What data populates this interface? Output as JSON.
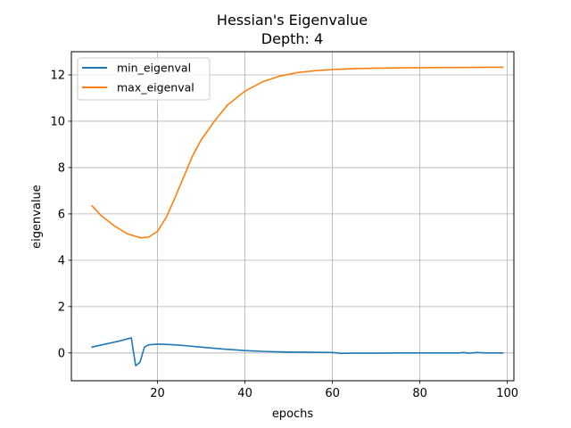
{
  "chart_data": {
    "type": "line",
    "title": "Hessian's Eigenvalue",
    "subtitle": "Depth: 4",
    "xlabel": "epochs",
    "ylabel": "eigenvalue",
    "xlim": [
      0.3,
      101.5
    ],
    "ylim": [
      -1.2,
      13.0
    ],
    "xticks": [
      20,
      40,
      60,
      80,
      100
    ],
    "yticks": [
      0,
      2,
      4,
      6,
      8,
      10,
      12
    ],
    "grid": true,
    "legend_position": "upper-left",
    "series": [
      {
        "name": "min_eigenval",
        "color": "#1f77b4",
        "x": [
          5,
          8,
          11,
          14,
          15,
          16,
          17,
          18,
          20,
          23,
          26,
          30,
          35,
          40,
          45,
          50,
          55,
          60,
          62,
          65,
          70,
          75,
          80,
          85,
          89,
          90,
          91,
          92,
          93,
          95,
          99
        ],
        "y": [
          0.25,
          0.38,
          0.5,
          0.65,
          -0.55,
          -0.4,
          0.25,
          0.35,
          0.38,
          0.36,
          0.32,
          0.25,
          0.17,
          0.1,
          0.06,
          0.04,
          0.03,
          0.02,
          -0.02,
          -0.01,
          -0.01,
          0.0,
          0.0,
          0.0,
          0.0,
          0.02,
          -0.01,
          0.0,
          0.02,
          0.0,
          0.0
        ]
      },
      {
        "name": "max_eigenval",
        "color": "#ff7f0e",
        "x": [
          5,
          7,
          10,
          13,
          16,
          18,
          20,
          22,
          24,
          26,
          28,
          30,
          33,
          36,
          40,
          44,
          48,
          52,
          56,
          60,
          65,
          70,
          75,
          80,
          85,
          90,
          95,
          99
        ],
        "y": [
          6.35,
          5.95,
          5.5,
          5.15,
          4.97,
          5.0,
          5.25,
          5.85,
          6.7,
          7.6,
          8.5,
          9.2,
          10.0,
          10.7,
          11.3,
          11.7,
          11.95,
          12.1,
          12.18,
          12.23,
          12.27,
          12.29,
          12.3,
          12.31,
          12.32,
          12.32,
          12.33,
          12.33
        ]
      }
    ]
  }
}
